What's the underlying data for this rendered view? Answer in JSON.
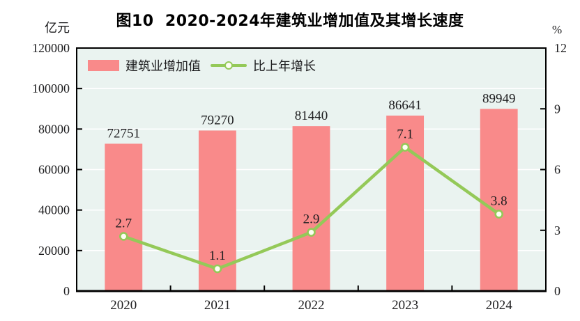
{
  "title": "图10  2020-2024年建筑业增加值及其增长速度",
  "legend": {
    "items": [
      {
        "label": "建筑业增加值",
        "type": "bar"
      },
      {
        "label": "比上年增长",
        "type": "line"
      }
    ]
  },
  "chart_data": {
    "type": "bar+line",
    "title": "图10  2020-2024年建筑业增加值及其增长速度",
    "categories": [
      "2020",
      "2021",
      "2022",
      "2023",
      "2024"
    ],
    "series": [
      {
        "name": "建筑业增加值",
        "type": "bar",
        "axis": "left",
        "values": [
          72751,
          79270,
          81440,
          86641,
          89949
        ]
      },
      {
        "name": "比上年增长",
        "type": "line",
        "axis": "right",
        "values": [
          2.7,
          1.1,
          2.9,
          7.1,
          3.8
        ]
      }
    ],
    "left_axis": {
      "unit": "亿元",
      "min": 0,
      "max": 120000,
      "tick_labels": [
        0,
        20000,
        40000,
        60000,
        80000,
        100000,
        120000
      ]
    },
    "right_axis": {
      "unit": "%",
      "min": 0,
      "max": 12,
      "tick_labels": [
        0,
        3,
        6,
        9,
        12
      ],
      "inner_ticks": [
        3,
        6,
        9
      ]
    },
    "grid": "horizontal-white",
    "legend_position": "top-left-inside"
  },
  "colors": {
    "bar": "#F98A8A",
    "line": "#94C958",
    "marker_fill": "#FCFEF2",
    "plot_bg": "#EAF3F0",
    "gridline": "#FFFFFF",
    "frame": "#000000",
    "text": "#1D1D1F"
  }
}
